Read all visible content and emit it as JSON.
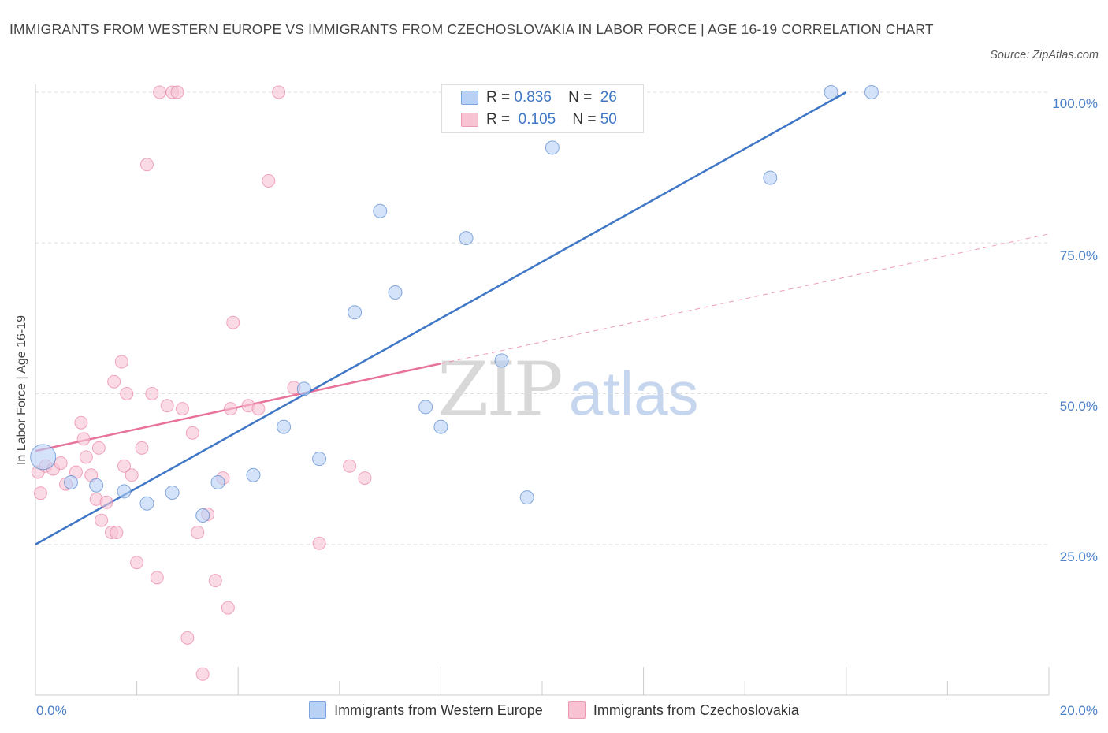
{
  "title": "IMMIGRANTS FROM WESTERN EUROPE VS IMMIGRANTS FROM CZECHOSLOVAKIA IN LABOR FORCE | AGE 16-19 CORRELATION CHART",
  "source": "Source: ZipAtlas.com",
  "watermark": {
    "zip": "ZIP",
    "atlas": "atlas"
  },
  "legend": {
    "series1": {
      "r_label": "R =",
      "r_value": "0.836",
      "n_label": "N =",
      "n_value": "26"
    },
    "series2": {
      "r_label": "R =",
      "r_value": "0.105",
      "n_label": "N =",
      "n_value": "50"
    }
  },
  "bottom_legend": {
    "series1": "Immigrants from Western Europe",
    "series2": "Immigrants from Czechoslovakia"
  },
  "chart_data": {
    "type": "scatter",
    "ylabel": "In Labor Force | Age 16-19",
    "xlim": [
      0,
      20
    ],
    "ylim": [
      0,
      100
    ],
    "x_tick_labels": [
      "0.0%",
      "20.0%"
    ],
    "y_tick_labels": [
      "100.0%",
      "75.0%",
      "50.0%",
      "25.0%"
    ],
    "y_ticks": [
      100,
      75,
      50,
      25
    ],
    "grid": true,
    "colors": {
      "series1": "#3f77c6",
      "series2": "#e8729a",
      "series1_fill": "#b8d1f5",
      "series2_fill": "#f7c3d3"
    },
    "series": [
      {
        "name": "Immigrants from Western Europe",
        "points": [
          [
            0.15,
            39.5
          ],
          [
            0.7,
            35.3
          ],
          [
            1.2,
            34.8
          ],
          [
            1.75,
            33.8
          ],
          [
            2.2,
            31.8
          ],
          [
            2.7,
            33.6
          ],
          [
            3.3,
            29.8
          ],
          [
            3.6,
            35.3
          ],
          [
            4.3,
            36.5
          ],
          [
            4.9,
            44.5
          ],
          [
            5.3,
            50.8
          ],
          [
            5.6,
            39.2
          ],
          [
            6.3,
            63.5
          ],
          [
            6.8,
            80.3
          ],
          [
            7.1,
            66.8
          ],
          [
            7.7,
            47.8
          ],
          [
            8.0,
            44.5
          ],
          [
            8.5,
            75.8
          ],
          [
            9.2,
            55.5
          ],
          [
            9.7,
            32.8
          ],
          [
            10.2,
            90.8
          ],
          [
            10.9,
            100.0
          ],
          [
            11.8,
            100.0
          ],
          [
            14.5,
            85.8
          ],
          [
            15.7,
            100.0
          ],
          [
            16.5,
            100.0
          ]
        ],
        "trend": [
          [
            0,
            25.0
          ],
          [
            16.0,
            100.0
          ]
        ]
      },
      {
        "name": "Immigrants from Czechoslovakia",
        "points": [
          [
            0.05,
            37.0
          ],
          [
            0.1,
            33.5
          ],
          [
            0.2,
            38.0
          ],
          [
            0.35,
            37.5
          ],
          [
            0.5,
            38.5
          ],
          [
            0.6,
            35.0
          ],
          [
            0.8,
            37.0
          ],
          [
            0.9,
            45.2
          ],
          [
            0.95,
            42.5
          ],
          [
            1.0,
            39.5
          ],
          [
            1.1,
            36.5
          ],
          [
            1.2,
            32.5
          ],
          [
            1.25,
            41.0
          ],
          [
            1.3,
            29.0
          ],
          [
            1.4,
            32.0
          ],
          [
            1.5,
            27.0
          ],
          [
            1.55,
            52.0
          ],
          [
            1.6,
            27.0
          ],
          [
            1.7,
            55.3
          ],
          [
            1.75,
            38.0
          ],
          [
            1.8,
            50.0
          ],
          [
            1.9,
            36.5
          ],
          [
            2.0,
            22.0
          ],
          [
            2.1,
            41.0
          ],
          [
            2.2,
            88.0
          ],
          [
            2.3,
            50.0
          ],
          [
            2.4,
            19.5
          ],
          [
            2.45,
            100.0
          ],
          [
            2.6,
            48.0
          ],
          [
            2.7,
            100.0
          ],
          [
            2.8,
            100.0
          ],
          [
            2.9,
            47.5
          ],
          [
            3.0,
            9.5
          ],
          [
            3.1,
            43.5
          ],
          [
            3.2,
            27.0
          ],
          [
            3.3,
            3.5
          ],
          [
            3.4,
            30.0
          ],
          [
            3.55,
            19.0
          ],
          [
            3.7,
            36.0
          ],
          [
            3.8,
            14.5
          ],
          [
            3.85,
            47.5
          ],
          [
            3.9,
            61.8
          ],
          [
            4.2,
            48.0
          ],
          [
            4.4,
            47.5
          ],
          [
            4.6,
            85.3
          ],
          [
            4.8,
            100.0
          ],
          [
            5.1,
            51.0
          ],
          [
            5.6,
            25.2
          ],
          [
            6.5,
            36.0
          ],
          [
            6.2,
            38.0
          ]
        ],
        "trend": [
          [
            0,
            40.5
          ],
          [
            8.0,
            55.0
          ]
        ],
        "trend_dashed": [
          [
            8.0,
            55.0
          ],
          [
            20.0,
            76.5
          ]
        ]
      }
    ]
  }
}
